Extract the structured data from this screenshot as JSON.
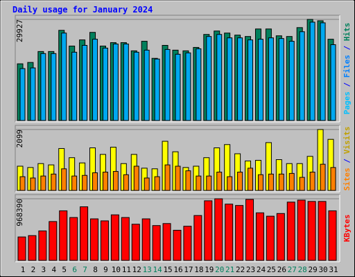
{
  "chart_data": [
    {
      "type": "bar",
      "title": "Daily usage for January 2024",
      "series": [
        {
          "name": "Hits",
          "color": "#00805c",
          "values": [
            16783,
            17187,
            20422,
            20422,
            26690,
            22040,
            23860,
            26084,
            22040,
            23051,
            23051,
            20624,
            23455,
            18400,
            22242,
            20827,
            20624,
            21635,
            25477,
            26488,
            25882,
            25275,
            24871,
            27095,
            27095,
            25073,
            24871,
            27499,
            29927,
            29522,
            24062
          ]
        },
        {
          "name": "Files",
          "color": "#00a8f0",
          "values": [
            15367,
            15569,
            19816,
            19816,
            25882,
            20220,
            22242,
            24062,
            21433,
            22646,
            22646,
            20220,
            20827,
            18198,
            21029,
            19613,
            20018,
            21231,
            24871,
            25477,
            24466,
            24466,
            23860,
            24062,
            24466,
            24264,
            23455,
            26286,
            29117,
            28915,
            22444
          ]
        }
      ],
      "side_label": [
        {
          "text": "Pages",
          "color": "#00c0ff"
        },
        {
          "text": " / ",
          "color": "#0000ff"
        },
        {
          "text": "Files",
          "color": "#0080ff"
        },
        {
          "text": " / ",
          "color": "#0000ff"
        },
        {
          "text": "Hits",
          "color": "#00805c"
        }
      ],
      "ylim": [
        0,
        29927
      ],
      "yticks": [
        29927
      ]
    },
    {
      "type": "bar",
      "series": [
        {
          "name": "Visits",
          "color": "#ffff00",
          "values": [
            835,
            790,
            925,
            880,
            1444,
            1128,
            948,
            1467,
            1241,
            1490,
            925,
            1241,
            767,
            745,
            1693,
            1332,
            790,
            835,
            1128,
            1467,
            1580,
            1264,
            1016,
            1038,
            1648,
            1061,
            925,
            925,
            1174,
            2099,
            1760
          ]
        },
        {
          "name": "Sites",
          "color": "#ff8000",
          "values": [
            474,
            429,
            497,
            564,
            745,
            497,
            519,
            609,
            632,
            655,
            542,
            835,
            429,
            474,
            880,
            835,
            677,
            497,
            497,
            632,
            474,
            632,
            767,
            542,
            564,
            564,
            587,
            451,
            632,
            903,
            790
          ]
        }
      ],
      "side_label": [
        {
          "text": "Sites",
          "color": "#ff8000"
        },
        {
          "text": " / ",
          "color": "#0000ff"
        },
        {
          "text": "Visits",
          "color": "#c0a000"
        }
      ],
      "ylim": [
        0,
        2099
      ],
      "yticks": [
        2099
      ]
    },
    {
      "type": "bar",
      "series": [
        {
          "name": "KBytes",
          "color": "#ff0000",
          "values": [
            368410,
            389460,
            463140,
            610510,
            778920,
            673660,
            842080,
            652610,
            621030,
            715770,
            673660,
            568400,
            652610,
            547350,
            578930,
            473670,
            536830,
            705240,
            936810,
            968390,
            884180,
            863130,
            957870,
            747350,
            694720,
            736820,
            915760,
            947340,
            926290,
            926290,
            778920
          ]
        }
      ],
      "side_label": [
        {
          "text": "KBytes",
          "color": "#ff0000"
        }
      ],
      "ylim": [
        0,
        968390
      ],
      "yticks": [
        968390
      ],
      "categories": [
        "1",
        "2",
        "3",
        "4",
        "5",
        "6",
        "7",
        "8",
        "9",
        "10",
        "11",
        "12",
        "13",
        "14",
        "15",
        "16",
        "17",
        "18",
        "19",
        "20",
        "21",
        "22",
        "23",
        "24",
        "25",
        "26",
        "27",
        "28",
        "29",
        "30",
        "31"
      ],
      "category_colors": [
        "#000000",
        "#000000",
        "#000000",
        "#000000",
        "#000000",
        "#00805c",
        "#00805c",
        "#000000",
        "#000000",
        "#000000",
        "#000000",
        "#000000",
        "#00805c",
        "#00805c",
        "#000000",
        "#000000",
        "#000000",
        "#000000",
        "#000000",
        "#00805c",
        "#00805c",
        "#000000",
        "#000000",
        "#000000",
        "#000000",
        "#000000",
        "#00805c",
        "#00805c",
        "#000000",
        "#000000",
        "#000000"
      ]
    }
  ]
}
